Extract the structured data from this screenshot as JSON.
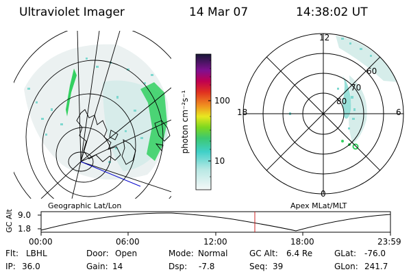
{
  "header": {
    "instrument": "Ultraviolet Imager",
    "date": "14 Mar 07",
    "time": "14:38:02 UT"
  },
  "colorbar": {
    "label": "photon cm⁻²s⁻¹",
    "tick_labels": [
      "100",
      "10"
    ],
    "scale": "log"
  },
  "polar_plot": {
    "mlt_labels": {
      "top": "12",
      "left": "18",
      "right": "6",
      "bottom": "0"
    },
    "lat_labels": [
      "60",
      "70",
      "80"
    ]
  },
  "map_labels": {
    "left": "Geographic Lat/Lon",
    "right": "Apex MLat/MLT"
  },
  "altitude_plot": {
    "axis_label": "GC Alt",
    "y_ticks": [
      "9.0",
      "1.8"
    ],
    "x_ticks": [
      "00:00",
      "06:00",
      "12:00",
      "18:00",
      "23:59"
    ],
    "current_time_marker": "14:38"
  },
  "info": {
    "row1": [
      {
        "key": "Flt:",
        "value": "LBHL"
      },
      {
        "key": "Door:",
        "value": "Open"
      },
      {
        "key": "Mode:",
        "value": "Normal"
      },
      {
        "key": "GC Alt:",
        "value": "6.4 Re"
      },
      {
        "key": "GLat:",
        "value": "-76.0"
      }
    ],
    "row2": [
      {
        "key": "IP:",
        "value": "36.0"
      },
      {
        "key": "Gain:",
        "value": "14"
      },
      {
        "key": "Dsp:",
        "value": "-7.8"
      },
      {
        "key": "Seq:",
        "value": "39"
      },
      {
        "key": "GLon:",
        "value": "241.7"
      }
    ]
  },
  "colors": {
    "auroral_green": "#33d060",
    "cyan_emission": "#7fd8d0",
    "orbit_track": "#0000cc",
    "time_marker": "#cc2222"
  }
}
